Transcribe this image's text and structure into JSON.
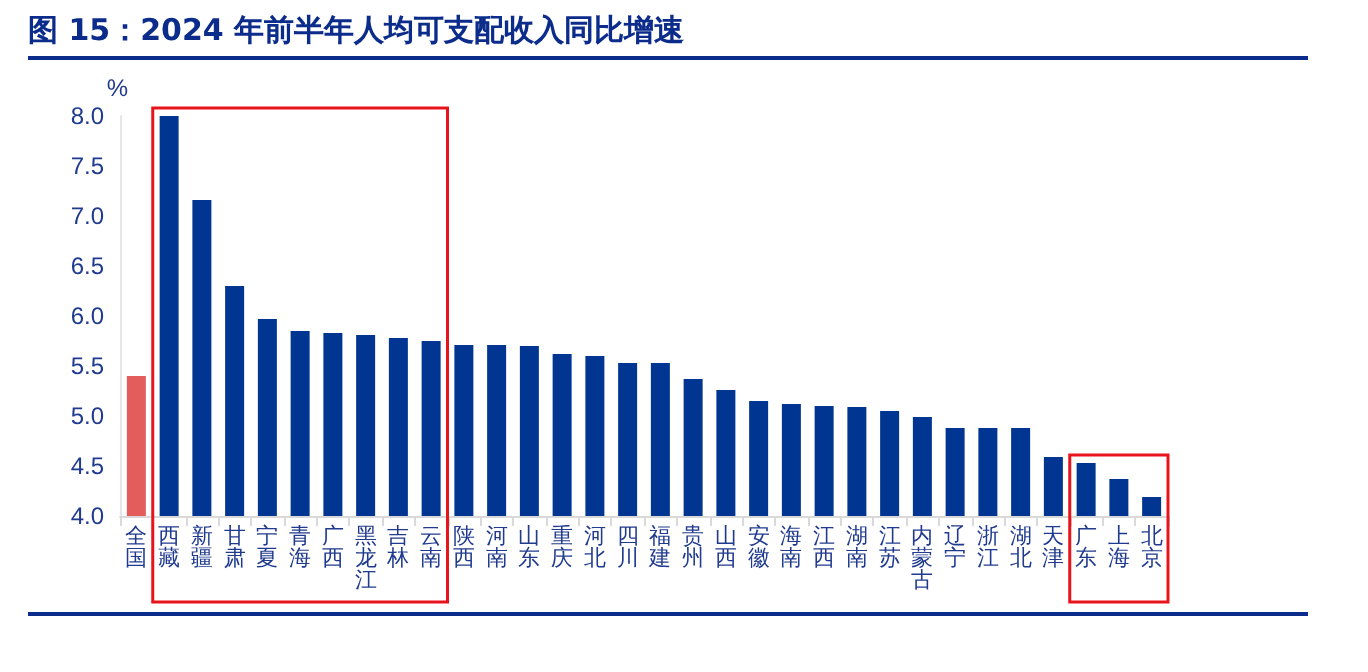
{
  "chart_data": {
    "type": "bar",
    "title": "图 15：2024 年前半年人均可支配收入同比增速",
    "ylabel": "%",
    "categories": [
      "全国",
      "西藏",
      "新疆",
      "甘肃",
      "宁夏",
      "青海",
      "广西",
      "黑龙江",
      "吉林",
      "云南",
      "陕西",
      "河南",
      "山东",
      "重庆",
      "河北",
      "四川",
      "福建",
      "贵州",
      "山西",
      "安徽",
      "海南",
      "江西",
      "湖南",
      "江苏",
      "内蒙古",
      "辽宁",
      "浙江",
      "湖北",
      "天津",
      "广东",
      "上海",
      "北京"
    ],
    "values": [
      5.4,
      8.0,
      7.16,
      6.3,
      5.97,
      5.85,
      5.83,
      5.81,
      5.78,
      5.75,
      5.71,
      5.71,
      5.7,
      5.62,
      5.6,
      5.53,
      5.53,
      5.37,
      5.26,
      5.15,
      5.12,
      5.1,
      5.09,
      5.05,
      4.99,
      4.88,
      4.88,
      4.88,
      4.59,
      4.53,
      4.37,
      4.19
    ],
    "colors": [
      "#e35d5d",
      "#003591",
      "#003591",
      "#003591",
      "#003591",
      "#003591",
      "#003591",
      "#003591",
      "#003591",
      "#003591",
      "#003591",
      "#003591",
      "#003591",
      "#003591",
      "#003591",
      "#003591",
      "#003591",
      "#003591",
      "#003591",
      "#003591",
      "#003591",
      "#003591",
      "#003591",
      "#003591",
      "#003591",
      "#003591",
      "#003591",
      "#003591",
      "#003591",
      "#003591",
      "#003591",
      "#003591"
    ],
    "ylim": [
      4,
      8
    ],
    "yticks": [
      {
        "value": 4,
        "label": "4.0"
      },
      {
        "value": 4.5,
        "label": "4.5"
      },
      {
        "value": 5,
        "label": "5.0"
      },
      {
        "value": 5.5,
        "label": "5.5"
      },
      {
        "value": 6,
        "label": "6.0"
      },
      {
        "value": 6.5,
        "label": "6.5"
      },
      {
        "value": 7,
        "label": "7.0"
      },
      {
        "value": 7.5,
        "label": "7.5"
      },
      {
        "value": 8,
        "label": "8.0"
      }
    ],
    "grid": false
  }
}
